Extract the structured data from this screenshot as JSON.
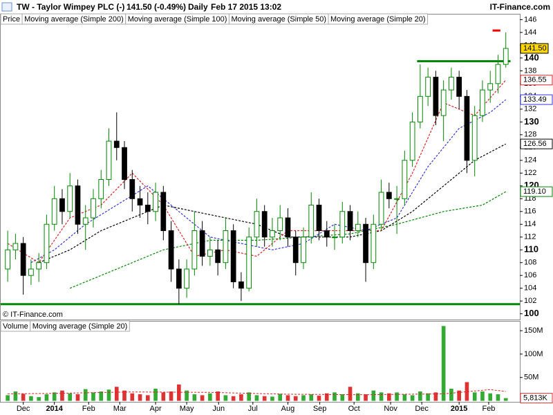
{
  "header": {
    "symbol": "TW - Taylor Wimpey PLC (-)",
    "quote": "141.50 (-0.49%)",
    "period": "Daily",
    "timestamp": "Feb 17 2015 13:02",
    "site": "IT-Finance.com"
  },
  "chart_data": [
    {
      "type": "candlestick",
      "price_name": "Price",
      "source": "© IT-Finance.com",
      "xlim": [
        -6.9,
        59.8
      ],
      "xticks": [
        {
          "value": -4,
          "label": "Dec"
        },
        {
          "value": 0,
          "label": "2014"
        },
        {
          "value": 4.4,
          "label": "Feb"
        },
        {
          "value": 8.4,
          "label": "Mar"
        },
        {
          "value": 13,
          "label": "Apr"
        },
        {
          "value": 17,
          "label": "May"
        },
        {
          "value": 21.1,
          "label": "Jun"
        },
        {
          "value": 25.5,
          "label": "Jul"
        },
        {
          "value": 30,
          "label": "Aug"
        },
        {
          "value": 34.1,
          "label": "Sep"
        },
        {
          "value": 38.5,
          "label": "Oct"
        },
        {
          "value": 43.2,
          "label": "Nov"
        },
        {
          "value": 47.2,
          "label": "Dec"
        },
        {
          "value": 52,
          "label": "2015"
        },
        {
          "value": 55.8,
          "label": "Feb"
        }
      ],
      "ylim": [
        99.1,
        146.8
      ],
      "yticks": [
        100,
        102,
        104,
        106,
        108,
        110,
        112,
        114,
        116,
        118,
        120,
        122,
        124,
        126,
        128,
        130,
        132,
        134,
        136,
        138,
        140,
        142,
        144,
        146
      ],
      "up_color": "#008800",
      "down_color": "#000000",
      "x": [
        -6,
        -5,
        -4,
        -3,
        -2,
        -1,
        0,
        1,
        2,
        3,
        4,
        5,
        6,
        7,
        8,
        9,
        10,
        11,
        12,
        13,
        14,
        15,
        16,
        17,
        18,
        19,
        20,
        21,
        22,
        23,
        24,
        25,
        26,
        27,
        28,
        29,
        30,
        31,
        32,
        33,
        34,
        35,
        36,
        37,
        38,
        39,
        40,
        41,
        42,
        43,
        44,
        45,
        46,
        47,
        48,
        49,
        50,
        51,
        52,
        53,
        54,
        55,
        56,
        57,
        58
      ],
      "open": [
        107,
        110,
        111,
        106,
        107,
        108,
        114,
        118,
        116,
        120,
        114,
        115,
        118,
        121,
        127,
        126,
        121,
        118,
        117,
        116,
        119,
        113,
        107,
        104,
        107,
        113,
        109,
        110,
        108,
        113,
        105,
        104,
        112,
        116,
        112,
        113,
        115,
        112,
        108,
        112,
        117,
        113,
        112,
        112,
        116,
        113,
        114,
        108,
        114,
        119,
        118,
        118,
        124,
        130,
        134,
        137,
        131,
        135,
        137,
        134,
        124,
        131,
        135,
        136,
        139
      ],
      "high": [
        113,
        112.5,
        112,
        108.5,
        109.5,
        115.5,
        120,
        119.5,
        122,
        121,
        117,
        119.5,
        122.5,
        129,
        131.5,
        127,
        122.5,
        120,
        119,
        120.5,
        120,
        114.5,
        108.5,
        108.5,
        116,
        114.5,
        112,
        111.5,
        115,
        114,
        106.5,
        113.5,
        118,
        117,
        115,
        117,
        116.5,
        113,
        113.5,
        119,
        118,
        114.5,
        114,
        117.5,
        117,
        116,
        115,
        115.5,
        121,
        120.5,
        120,
        125.5,
        131.5,
        139,
        138.5,
        138,
        136.5,
        138.5,
        138,
        135,
        132.5,
        136.5,
        138,
        140.5,
        144
      ],
      "low": [
        105,
        108.5,
        103,
        104.5,
        105,
        107,
        113,
        114,
        115,
        112.5,
        110,
        113.5,
        116.5,
        120,
        124,
        119.5,
        116,
        115,
        114,
        114.5,
        111.5,
        105,
        101.5,
        102.5,
        106,
        107.5,
        107.5,
        106,
        107,
        104,
        102,
        103.5,
        110.5,
        110.5,
        110.5,
        111.5,
        110.5,
        106,
        107,
        111,
        111.5,
        110.5,
        110,
        111,
        111.5,
        112,
        105,
        107,
        113,
        116.5,
        112.5,
        117,
        123,
        129,
        132.5,
        129.5,
        127,
        133.5,
        132,
        122,
        121.5,
        130,
        133,
        134.5,
        138.5
      ],
      "close": [
        110,
        111,
        106,
        107,
        108,
        114,
        118,
        116,
        120,
        114,
        115,
        118,
        121,
        127,
        126,
        121,
        118,
        117,
        116,
        119,
        113,
        107,
        104,
        107,
        113,
        109,
        110,
        108,
        113,
        105,
        104,
        112,
        116,
        112,
        113,
        115,
        112,
        108,
        112,
        117,
        113,
        112,
        112,
        116,
        113,
        114,
        108,
        114,
        119,
        118,
        118,
        124,
        130,
        134,
        137,
        131,
        135,
        137,
        134,
        124,
        131,
        135,
        136,
        139,
        141.5
      ],
      "last": {
        "value": 141.5,
        "label": "141.50"
      },
      "series": [
        {
          "name": "Moving average (Simple 200)",
          "color": "#008800",
          "x": [
            2,
            8,
            14,
            20,
            26,
            32,
            38,
            44,
            50,
            55,
            58
          ],
          "values": [
            104,
            107,
            110,
            111.5,
            111.5,
            112,
            112.5,
            114,
            116,
            117,
            119.1
          ],
          "value_labels": [
            null,
            null,
            null,
            null,
            null,
            null,
            null,
            null,
            null,
            null,
            "119.10"
          ]
        },
        {
          "name": "Moving average (Simple 100)",
          "color": "#000000",
          "x": [
            -2,
            2,
            6,
            10,
            14,
            18,
            22,
            26,
            30,
            34,
            38,
            42,
            46,
            50,
            54,
            58
          ],
          "values": [
            108,
            110,
            113,
            115,
            117,
            116,
            115,
            114,
            112,
            112,
            112,
            113,
            116,
            120,
            124,
            126.56
          ],
          "value_labels": [
            null,
            null,
            null,
            null,
            null,
            null,
            null,
            null,
            null,
            null,
            null,
            null,
            null,
            null,
            null,
            "126.56"
          ]
        },
        {
          "name": "Moving average (Simple 50)",
          "color": "#3333dd",
          "x": [
            -3,
            0,
            4,
            8,
            12,
            16,
            20,
            24,
            28,
            32,
            36,
            40,
            44,
            48,
            52,
            56,
            58
          ],
          "values": [
            108,
            110,
            114,
            117,
            120,
            116,
            112,
            111,
            110,
            111,
            114,
            113,
            115,
            123,
            129,
            131.5,
            133.49
          ],
          "value_labels": [
            null,
            null,
            null,
            null,
            null,
            null,
            null,
            null,
            null,
            null,
            null,
            null,
            null,
            null,
            null,
            null,
            "133.49"
          ]
        },
        {
          "name": "Moving average (Simple 20)",
          "color": "#dd2222",
          "x": [
            -6,
            -2,
            2,
            6,
            10,
            14,
            18,
            22,
            26,
            30,
            34,
            38,
            42,
            46,
            50,
            54,
            58
          ],
          "values": [
            111,
            108,
            115,
            117,
            122,
            117,
            109,
            110,
            109,
            113,
            113,
            113,
            113,
            122,
            133,
            131,
            136.55
          ],
          "value_labels": [
            null,
            null,
            null,
            null,
            null,
            null,
            null,
            null,
            null,
            null,
            null,
            null,
            null,
            null,
            null,
            null,
            "136.55"
          ]
        }
      ],
      "lines": [
        {
          "y": 101.5,
          "x": [
            -6.9,
            59.8
          ],
          "color": "#008800"
        },
        {
          "y": 139.5,
          "x": [
            46.6,
            58.6
          ],
          "color": "#008800"
        },
        {
          "y": 144.3,
          "x": [
            56.3,
            57.3
          ],
          "color": "#ee0000"
        }
      ]
    },
    {
      "type": "volume",
      "name": "Volume",
      "ylim": [
        -2.2,
        169.4
      ],
      "yticks": [
        {
          "value": 50,
          "label": "50M"
        },
        {
          "value": 100,
          "label": "100M"
        },
        {
          "value": 150,
          "label": "150M"
        }
      ],
      "values": [
        12,
        20,
        15,
        10,
        8,
        14,
        18,
        22,
        16,
        14,
        25,
        18,
        20,
        24,
        30,
        22,
        16,
        14,
        12,
        26,
        18,
        20,
        35,
        22,
        14,
        12,
        16,
        20,
        12,
        10,
        14,
        18,
        12,
        10,
        9,
        15,
        12,
        10,
        12,
        14,
        11,
        16,
        18,
        14,
        30,
        16,
        14,
        22,
        18,
        16,
        18,
        14,
        12,
        20,
        16,
        18,
        160,
        26,
        22,
        40,
        18,
        20,
        16,
        14,
        5.813
      ],
      "value_labels": [
        null,
        null,
        null,
        null,
        null,
        null,
        null,
        null,
        null,
        null,
        null,
        null,
        null,
        null,
        null,
        null,
        null,
        null,
        null,
        null,
        null,
        null,
        null,
        null,
        null,
        null,
        null,
        null,
        null,
        null,
        null,
        null,
        null,
        null,
        null,
        null,
        null,
        null,
        null,
        null,
        null,
        null,
        null,
        null,
        null,
        null,
        null,
        null,
        null,
        null,
        null,
        null,
        null,
        null,
        null,
        null,
        null,
        null,
        null,
        null,
        null,
        null,
        null,
        null,
        "5,813K"
      ],
      "series": [
        {
          "name": "Moving average (Simple 20)",
          "color": "#dd2222",
          "x": [
            -6,
            0,
            10,
            20,
            30,
            40,
            50,
            56,
            58
          ],
          "values": [
            15,
            16,
            19,
            18,
            14,
            13,
            15,
            24,
            20
          ]
        }
      ]
    }
  ]
}
